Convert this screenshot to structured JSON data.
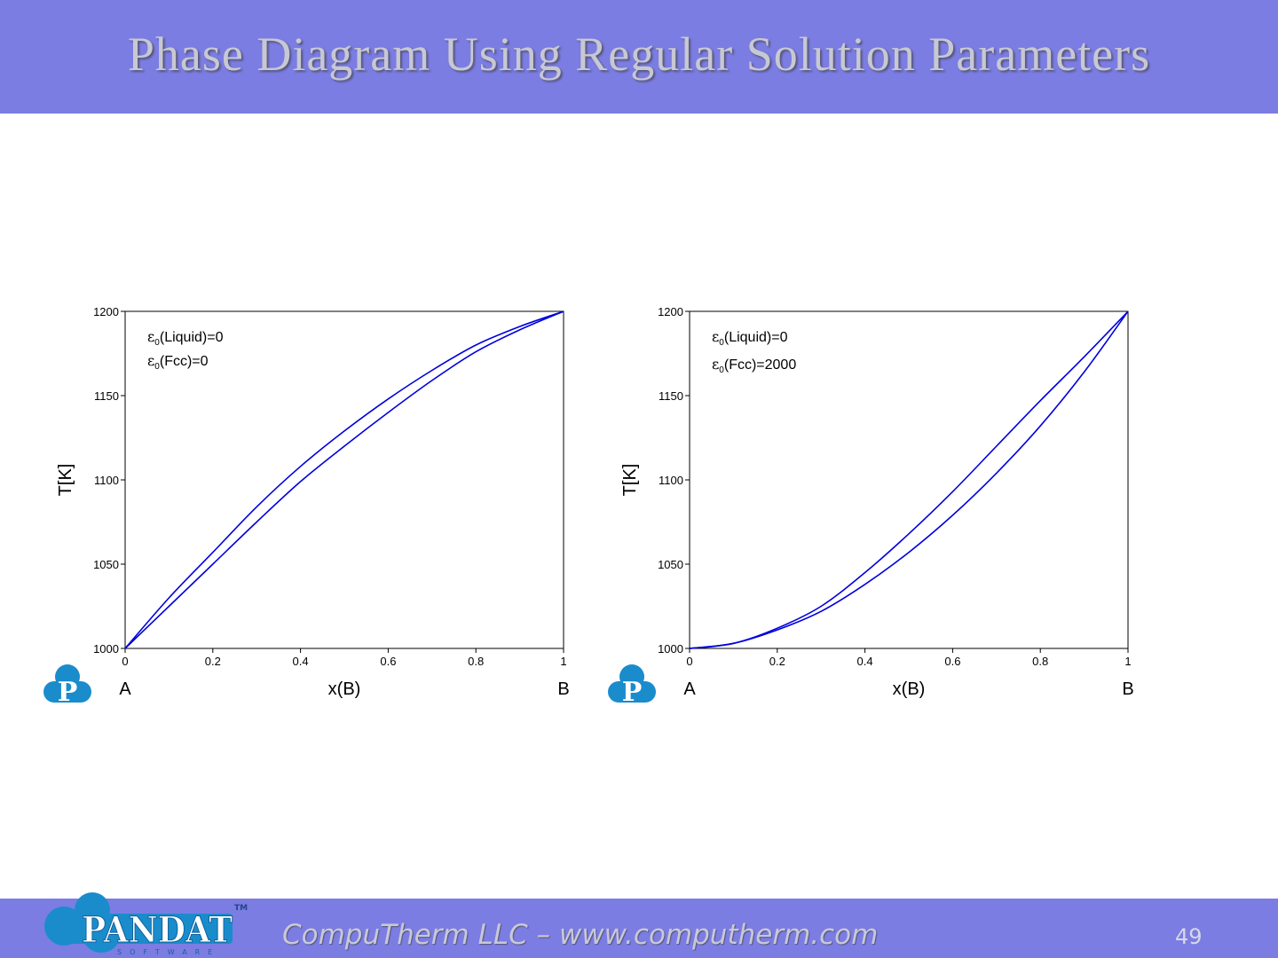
{
  "slide": {
    "title": "Phase Diagram Using Regular Solution Parameters",
    "footer": "CompuTherm LLC – www.computherm.com",
    "page_number": "49",
    "logo_text": "PANDAT",
    "logo_subtext": "SOFTWARE",
    "logo_tm": "TM",
    "chart_icon_letter": "P"
  },
  "colors": {
    "band": "#7b7de3",
    "curve": "#0000dd",
    "logo": "#1a8ccc"
  },
  "chart_data": [
    {
      "type": "line",
      "ylabel": "T[K]",
      "xlabel": "x(B)",
      "xlim": [
        0,
        1
      ],
      "ylim": [
        1000,
        1200
      ],
      "xticks": [
        0,
        0.2,
        0.4,
        0.6,
        0.8,
        1
      ],
      "xtick_labels": [
        "0",
        "0.2",
        "0.4",
        "0.6",
        "0.8",
        "1"
      ],
      "yticks": [
        1000,
        1050,
        1100,
        1150,
        1200
      ],
      "ytick_labels": [
        "1000",
        "1050",
        "1100",
        "1150",
        "1200"
      ],
      "end_labels": {
        "left": "A",
        "right": "B"
      },
      "annotations": [
        {
          "symbol": "ε",
          "sub": "0",
          "text": "(Liquid)=0"
        },
        {
          "symbol": "ε",
          "sub": "0",
          "text": "(Fcc)=0"
        }
      ],
      "series": [
        {
          "x": [
            0,
            0.1,
            0.2,
            0.3,
            0.4,
            0.5,
            0.6,
            0.7,
            0.8,
            0.9,
            1
          ],
          "y": [
            1000,
            1030,
            1057,
            1084,
            1108,
            1129,
            1148,
            1165,
            1180,
            1191,
            1200
          ]
        },
        {
          "x": [
            0,
            0.1,
            0.2,
            0.3,
            0.4,
            0.5,
            0.6,
            0.7,
            0.8,
            0.9,
            1
          ],
          "y": [
            1000,
            1025,
            1050,
            1075,
            1099,
            1120,
            1140,
            1159,
            1176,
            1189,
            1200
          ]
        }
      ]
    },
    {
      "type": "line",
      "ylabel": "T[K]",
      "xlabel": "x(B)",
      "xlim": [
        0,
        1
      ],
      "ylim": [
        1000,
        1200
      ],
      "xticks": [
        0,
        0.2,
        0.4,
        0.6,
        0.8,
        1
      ],
      "xtick_labels": [
        "0",
        "0.2",
        "0.4",
        "0.6",
        "0.8",
        "1"
      ],
      "yticks": [
        1000,
        1050,
        1100,
        1150,
        1200
      ],
      "ytick_labels": [
        "1000",
        "1050",
        "1100",
        "1150",
        "1200"
      ],
      "end_labels": {
        "left": "A",
        "right": "B"
      },
      "annotations": [
        {
          "symbol": "ε",
          "sub": "0",
          "text": "(Liquid)=0"
        },
        {
          "symbol": "ε",
          "sub": "0",
          "text": "(Fcc)=2000"
        }
      ],
      "series": [
        {
          "x": [
            0,
            0.1,
            0.2,
            0.3,
            0.4,
            0.5,
            0.6,
            0.7,
            0.8,
            0.9,
            1
          ],
          "y": [
            1000,
            1003,
            1012,
            1025,
            1045,
            1068,
            1093,
            1120,
            1147,
            1173,
            1200
          ]
        },
        {
          "x": [
            0,
            0.1,
            0.2,
            0.3,
            0.4,
            0.5,
            0.6,
            0.7,
            0.8,
            0.9,
            1
          ],
          "y": [
            1000,
            1003,
            1011,
            1022,
            1038,
            1057,
            1079,
            1104,
            1132,
            1164,
            1200
          ]
        }
      ]
    }
  ]
}
